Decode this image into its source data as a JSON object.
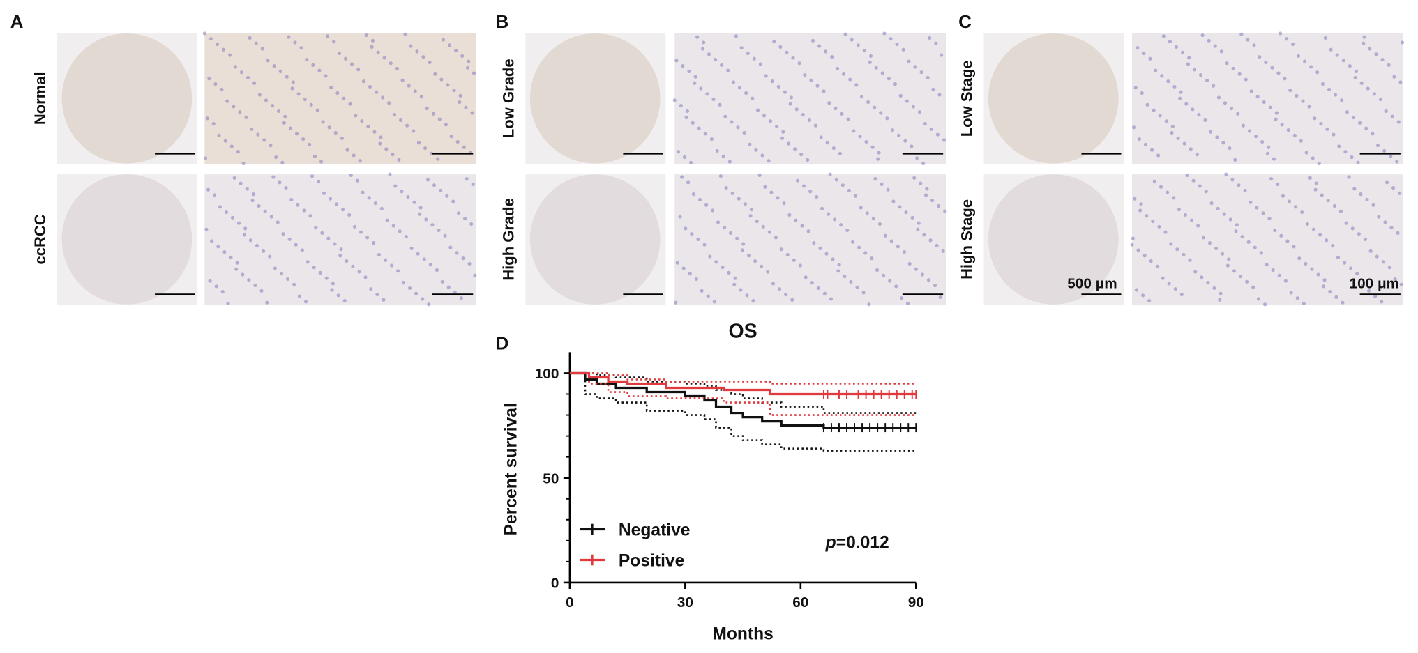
{
  "panels": [
    {
      "label": "A",
      "rows": [
        "Normal",
        "ccRCC"
      ]
    },
    {
      "label": "B",
      "rows": [
        "Low Grade",
        "High Grade"
      ]
    },
    {
      "label": "C",
      "rows": [
        "Low Stage",
        "High Stage"
      ]
    }
  ],
  "scale_bars": [
    "500 μm",
    "100 μm"
  ],
  "chart_data": {
    "type": "line",
    "panel_label": "D",
    "title": "OS",
    "xlabel": "Months",
    "ylabel": "Percent survival",
    "step": true,
    "xlim": [
      0,
      90
    ],
    "xticks": [
      0,
      30,
      60,
      90
    ],
    "ylim": [
      0,
      110
    ],
    "yticks": [
      0,
      50,
      100
    ],
    "annotation": {
      "italic": "p",
      "text": "=0.012"
    },
    "legend": "lower left",
    "series": [
      {
        "name": "Negative",
        "color": "#111111",
        "x": [
          0,
          4,
          7,
          12,
          20,
          30,
          35,
          38,
          42,
          45,
          50,
          55,
          66,
          90
        ],
        "values": [
          100,
          97,
          95,
          93,
          91,
          89,
          87,
          84,
          81,
          79,
          77,
          75,
          74,
          74
        ],
        "upper": [
          100,
          100,
          99,
          98,
          96,
          95,
          94,
          92,
          90,
          88,
          86,
          84,
          81,
          81
        ],
        "lower": [
          100,
          90,
          88,
          86,
          82,
          80,
          78,
          74,
          70,
          68,
          66,
          64,
          63,
          63
        ],
        "censored": [
          66,
          68,
          70,
          72,
          74,
          76,
          78,
          80,
          82,
          84,
          86,
          88,
          90
        ]
      },
      {
        "name": "Positive",
        "color": "#e0393e",
        "x": [
          0,
          5,
          10,
          15,
          25,
          40,
          52,
          90
        ],
        "values": [
          100,
          98,
          96,
          95,
          93,
          92,
          90,
          90
        ],
        "upper": [
          100,
          100,
          99,
          97,
          96,
          96,
          95,
          95
        ],
        "lower": [
          100,
          95,
          91,
          89,
          88,
          86,
          80,
          80
        ],
        "censored": [
          66,
          67,
          70,
          72,
          75,
          77,
          79,
          81,
          83,
          85,
          87,
          89,
          90
        ]
      }
    ]
  }
}
